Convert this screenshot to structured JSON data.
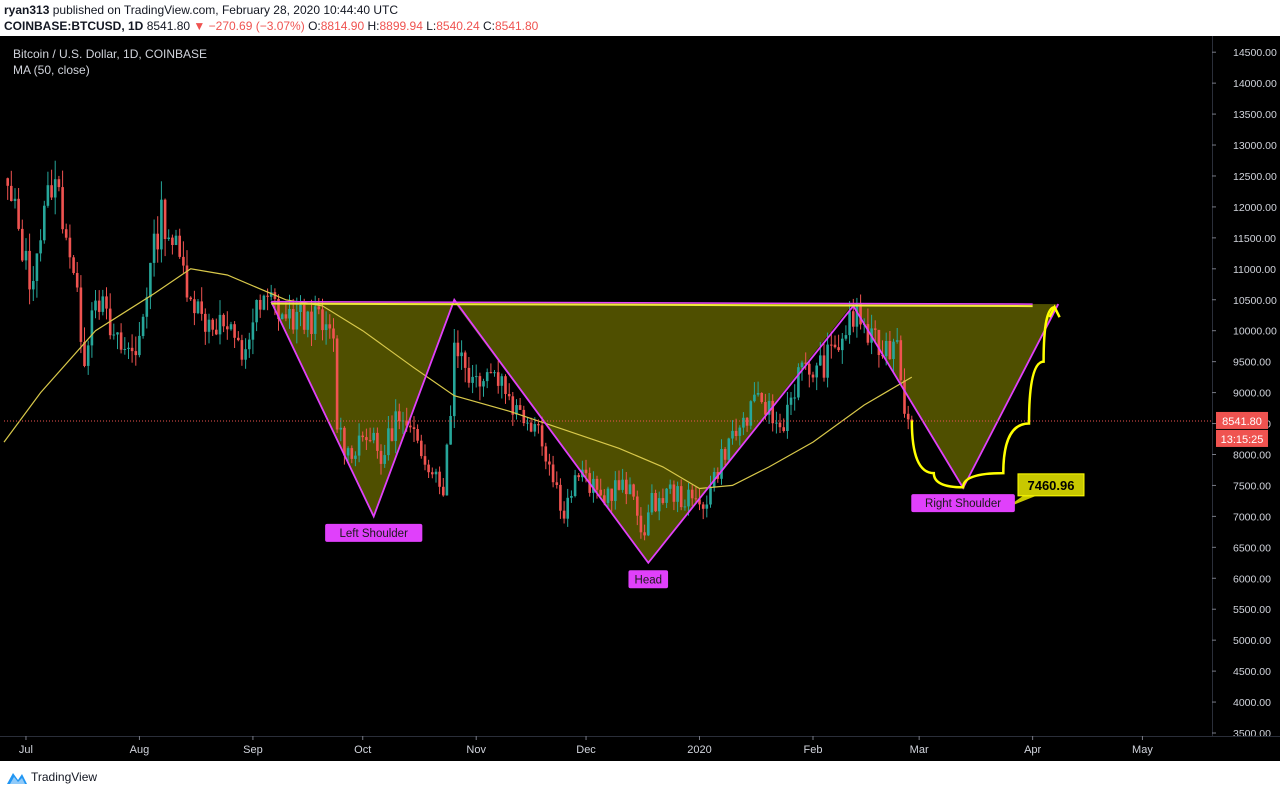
{
  "header": {
    "author": "ryan313",
    "published": "published on TradingView.com, February 28, 2020 10:44:40 UTC",
    "symbol": "COINBASE:BTCUSD, 1D",
    "last": "8541.80",
    "change": "−270.69 (−3.07%)",
    "open_label": "O:",
    "open": "8814.90",
    "high_label": "H:",
    "high": "8899.94",
    "low_label": "L:",
    "low": "8540.24",
    "close_label": "C:",
    "close": "8541.80"
  },
  "legend": {
    "title": "Bitcoin / U.S. Dollar, 1D, COINBASE",
    "indicator": "MA (50, close)"
  },
  "colors": {
    "background": "#000000",
    "up": "#26a69a",
    "down": "#ef5350",
    "ma": "#d8c84a",
    "pattern_line": "#e040fb",
    "pattern_fill": "#5d5d00",
    "neckline": "#f0ea3a",
    "target_line": "#ffff00",
    "label_bg": "#e040fb",
    "price_tag": "#ef5350"
  },
  "footer": {
    "brand": "TradingView"
  },
  "chart_data": {
    "type": "candlestick",
    "title": "Bitcoin / U.S. Dollar, 1D, COINBASE",
    "x_range": [
      "2019-06-25",
      "2020-05-20"
    ],
    "y_range": [
      3500,
      14600
    ],
    "y_ticks": [
      3500,
      4000,
      4500,
      5000,
      5500,
      6000,
      6500,
      7000,
      7500,
      8000,
      8500,
      9000,
      9500,
      10000,
      10500,
      11000,
      11500,
      12000,
      12500,
      13000,
      13500,
      14000,
      14500
    ],
    "x_ticks": [
      {
        "date": "2019-07-01",
        "label": "Jul"
      },
      {
        "date": "2019-08-01",
        "label": "Aug"
      },
      {
        "date": "2019-09-01",
        "label": "Sep"
      },
      {
        "date": "2019-10-01",
        "label": "Oct"
      },
      {
        "date": "2019-11-01",
        "label": "Nov"
      },
      {
        "date": "2019-12-01",
        "label": "Dec"
      },
      {
        "date": "2020-01-01",
        "label": "2020"
      },
      {
        "date": "2020-02-01",
        "label": "Feb"
      },
      {
        "date": "2020-03-01",
        "label": "Mar"
      },
      {
        "date": "2020-04-01",
        "label": "Apr"
      },
      {
        "date": "2020-05-01",
        "label": "May"
      }
    ],
    "price_keypoints": [
      [
        "2019-06-26",
        12200
      ],
      [
        "2019-06-28",
        11900
      ],
      [
        "2019-07-02",
        10800
      ],
      [
        "2019-07-04",
        11300
      ],
      [
        "2019-07-08",
        12400
      ],
      [
        "2019-07-10",
        12200
      ],
      [
        "2019-07-13",
        11300
      ],
      [
        "2019-07-17",
        9600
      ],
      [
        "2019-07-20",
        10700
      ],
      [
        "2019-07-25",
        9800
      ],
      [
        "2019-07-31",
        9600
      ],
      [
        "2019-08-03",
        10700
      ],
      [
        "2019-08-07",
        11900
      ],
      [
        "2019-08-11",
        11300
      ],
      [
        "2019-08-14",
        10800
      ],
      [
        "2019-08-18",
        10200
      ],
      [
        "2019-08-24",
        10100
      ],
      [
        "2019-08-29",
        9600
      ],
      [
        "2019-09-02",
        10300
      ],
      [
        "2019-09-06",
        10500
      ],
      [
        "2019-09-10",
        10200
      ],
      [
        "2019-09-18",
        10200
      ],
      [
        "2019-09-23",
        9800
      ],
      [
        "2019-09-24",
        8500
      ],
      [
        "2019-09-27",
        8000
      ],
      [
        "2019-10-02",
        8400
      ],
      [
        "2019-10-06",
        7900
      ],
      [
        "2019-10-10",
        8600
      ],
      [
        "2019-10-14",
        8300
      ],
      [
        "2019-10-18",
        8000
      ],
      [
        "2019-10-23",
        7500
      ],
      [
        "2019-10-25",
        8600
      ],
      [
        "2019-10-26",
        9900
      ],
      [
        "2019-10-31",
        9200
      ],
      [
        "2019-11-04",
        9400
      ],
      [
        "2019-11-08",
        9200
      ],
      [
        "2019-11-12",
        8700
      ],
      [
        "2019-11-18",
        8500
      ],
      [
        "2019-11-22",
        7600
      ],
      [
        "2019-11-25",
        7100
      ],
      [
        "2019-11-29",
        7700
      ],
      [
        "2019-12-05",
        7300
      ],
      [
        "2019-12-10",
        7500
      ],
      [
        "2019-12-14",
        7300
      ],
      [
        "2019-12-17",
        6700
      ],
      [
        "2019-12-19",
        7200
      ],
      [
        "2019-12-24",
        7400
      ],
      [
        "2019-12-31",
        7200
      ],
      [
        "2020-01-03",
        7300
      ],
      [
        "2020-01-08",
        8100
      ],
      [
        "2020-01-14",
        8600
      ],
      [
        "2020-01-18",
        8900
      ],
      [
        "2020-01-23",
        8400
      ],
      [
        "2020-01-28",
        9300
      ],
      [
        "2020-02-03",
        9400
      ],
      [
        "2020-02-07",
        9700
      ],
      [
        "2020-02-13",
        10300
      ],
      [
        "2020-02-17",
        9800
      ],
      [
        "2020-02-21",
        9700
      ],
      [
        "2020-02-24",
        9900
      ],
      [
        "2020-02-26",
        8800
      ],
      [
        "2020-02-28",
        8541.8
      ]
    ],
    "moving_average": {
      "name": "MA (50, close)",
      "points": [
        [
          "2019-06-25",
          8200
        ],
        [
          "2019-07-05",
          9000
        ],
        [
          "2019-07-20",
          10000
        ],
        [
          "2019-08-05",
          10600
        ],
        [
          "2019-08-15",
          11000
        ],
        [
          "2019-08-25",
          10900
        ],
        [
          "2019-09-10",
          10500
        ],
        [
          "2019-09-20",
          10400
        ],
        [
          "2019-10-01",
          10000
        ],
        [
          "2019-10-15",
          9400
        ],
        [
          "2019-10-26",
          8950
        ],
        [
          "2019-11-10",
          8700
        ],
        [
          "2019-11-25",
          8400
        ],
        [
          "2019-12-10",
          8100
        ],
        [
          "2019-12-22",
          7800
        ],
        [
          "2020-01-01",
          7450
        ],
        [
          "2020-01-10",
          7500
        ],
        [
          "2020-01-20",
          7800
        ],
        [
          "2020-02-01",
          8200
        ],
        [
          "2020-02-15",
          8800
        ],
        [
          "2020-02-28",
          9250
        ]
      ]
    },
    "pattern": {
      "name": "Inverse head and shoulders",
      "neckline": [
        [
          "2019-09-06",
          10470
        ],
        [
          "2020-04-08",
          10430
        ]
      ],
      "neckline_extension_end": [
        "2020-04-01",
        10430
      ],
      "vertices": [
        [
          "2019-09-06",
          10470
        ],
        [
          "2019-10-04",
          7000
        ],
        [
          "2019-10-26",
          10500
        ],
        [
          "2019-12-18",
          6250
        ],
        [
          "2020-02-12",
          10400
        ],
        [
          "2020-03-13",
          7460
        ],
        [
          "2020-04-08",
          10430
        ]
      ],
      "labels": [
        {
          "text": "Left Shoulder",
          "date": "2019-10-04",
          "price": 6750
        },
        {
          "text": "Head",
          "date": "2019-12-18",
          "price": 6000
        },
        {
          "text": "Right Shoulder",
          "date": "2020-03-13",
          "price": 7230
        }
      ]
    },
    "projection": {
      "points": [
        [
          "2020-02-28",
          8550
        ],
        [
          "2020-03-05",
          7700
        ],
        [
          "2020-03-13",
          7470
        ],
        [
          "2020-03-24",
          7700
        ],
        [
          "2020-03-31",
          8500
        ],
        [
          "2020-04-04",
          9500
        ],
        [
          "2020-04-07",
          10380
        ]
      ],
      "target_label": "7460.96",
      "target_price": 7460.96
    },
    "last_price": 8541.8,
    "last_price_label": "8541.80",
    "countdown_label": "13:15:25"
  }
}
